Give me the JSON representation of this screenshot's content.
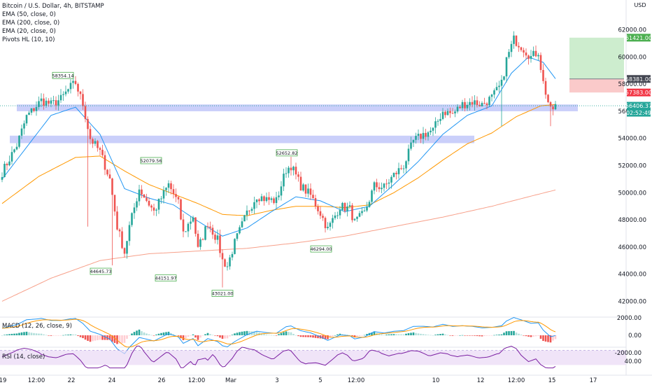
{
  "header": {
    "title": "Bitcoin / U.S. Dollar, 4h, BITSTAMP",
    "indicators": [
      "EMA (50, close, 0)",
      "EMA (200, close, 0)",
      "EMA (20, close, 0)",
      "Pivots HL (10, 10)"
    ]
  },
  "currency": {
    "line1": "USD",
    "line2": ""
  },
  "macd_label": "MACD (12, 26, close, 9)",
  "rsi_label": "RSI (14, close)",
  "badges": {
    "target": "61421.00",
    "entry": "58381.00",
    "stop": "57383.00",
    "last_price": "56406.37",
    "countdown": "02:52:49"
  },
  "colors": {
    "up": "#26a69a",
    "down": "#ef5350",
    "ema20": "#2196f3",
    "ema50": "#ff9800",
    "ema200": "#f7a08a",
    "zone": "#9fa8f5",
    "profit": "#c8ebc9",
    "loss": "#f9c4c4",
    "macd_line": "#2196f3",
    "signal_line": "#ff9800",
    "rsi_line": "#7b1fa2",
    "rsi_band": "#ead9f5"
  },
  "chart_data": [
    {
      "type": "candlestick",
      "title": "Bitcoin / U.S. Dollar, 4h, BITSTAMP",
      "ylim": [
        41000,
        63500
      ],
      "y_ticks": [
        "62000.00",
        "60000.00",
        "58000.00",
        "56000.00",
        "54000.00",
        "52000.00",
        "50000.00",
        "48000.00",
        "46000.00",
        "44000.00",
        "42000.00"
      ],
      "x_ticks": [
        "19",
        "12:00",
        "22",
        "24",
        "26",
        "12:00",
        "Mar",
        "3",
        "5",
        "12:00",
        "10",
        "12",
        "12:00",
        "15",
        "17"
      ],
      "pivot_labels": [
        {
          "label": "58354.14",
          "price": 58354.14,
          "kind": "high"
        },
        {
          "label": "44645.73",
          "price": 44645.73,
          "kind": "low"
        },
        {
          "label": "52079.56",
          "price": 52079.56,
          "kind": "high"
        },
        {
          "label": "44151.97",
          "price": 44151.97,
          "kind": "low"
        },
        {
          "label": "43021.00",
          "price": 43021.0,
          "kind": "low"
        },
        {
          "label": "52652.82",
          "price": 52652.82,
          "kind": "high"
        },
        {
          "label": "46294.00",
          "price": 46294.0,
          "kind": "low"
        }
      ],
      "zones": [
        {
          "from": 56000,
          "to": 56500
        },
        {
          "from": 53650,
          "to": 54200
        }
      ],
      "position": {
        "target": 61421.0,
        "entry": 58381.0,
        "stop": 57383.0
      },
      "last_price": 56406.37,
      "path_anchors": [
        [
          0,
          51500
        ],
        [
          6,
          53500
        ],
        [
          10,
          55600
        ],
        [
          16,
          56800
        ],
        [
          20,
          56500
        ],
        [
          24,
          56900
        ],
        [
          28,
          57800
        ],
        [
          30,
          58100
        ],
        [
          33,
          56500
        ],
        [
          36,
          54000
        ],
        [
          40,
          53000
        ],
        [
          44,
          51000
        ],
        [
          47,
          47500
        ],
        [
          50,
          45600
        ],
        [
          52,
          47500
        ],
        [
          56,
          50300
        ],
        [
          62,
          48600
        ],
        [
          68,
          50600
        ],
        [
          72,
          49200
        ],
        [
          74,
          47000
        ],
        [
          78,
          48300
        ],
        [
          80,
          45800
        ],
        [
          84,
          47800
        ],
        [
          88,
          46500
        ],
        [
          90,
          45000
        ],
        [
          92,
          44600
        ],
        [
          95,
          46300
        ],
        [
          100,
          48500
        ],
        [
          104,
          49800
        ],
        [
          108,
          49500
        ],
        [
          112,
          49400
        ],
        [
          116,
          51700
        ],
        [
          118,
          52000
        ],
        [
          122,
          50500
        ],
        [
          126,
          49800
        ],
        [
          130,
          48500
        ],
        [
          133,
          47300
        ],
        [
          138,
          49000
        ],
        [
          142,
          48800
        ],
        [
          144,
          47800
        ],
        [
          148,
          48500
        ],
        [
          152,
          50500
        ],
        [
          156,
          50400
        ],
        [
          160,
          51300
        ],
        [
          164,
          52000
        ],
        [
          168,
          53800
        ],
        [
          172,
          54300
        ],
        [
          176,
          54600
        ],
        [
          180,
          56000
        ],
        [
          184,
          55800
        ],
        [
          188,
          56500
        ],
        [
          192,
          56700
        ],
        [
          196,
          56500
        ],
        [
          200,
          57000
        ],
        [
          204,
          58000
        ],
        [
          206,
          59800
        ],
        [
          209,
          61300
        ],
        [
          212,
          60800
        ],
        [
          216,
          60000
        ],
        [
          219,
          60400
        ],
        [
          221,
          58100
        ],
        [
          224,
          56000
        ],
        [
          226,
          56400
        ]
      ],
      "ema20_anchors": [
        [
          0,
          51000
        ],
        [
          20,
          55700
        ],
        [
          30,
          56300
        ],
        [
          40,
          54300
        ],
        [
          50,
          50300
        ],
        [
          60,
          49600
        ],
        [
          70,
          49100
        ],
        [
          80,
          47900
        ],
        [
          90,
          46800
        ],
        [
          100,
          47400
        ],
        [
          110,
          48600
        ],
        [
          120,
          49700
        ],
        [
          130,
          49400
        ],
        [
          140,
          48600
        ],
        [
          150,
          49000
        ],
        [
          160,
          50600
        ],
        [
          170,
          52300
        ],
        [
          180,
          54300
        ],
        [
          190,
          55700
        ],
        [
          200,
          56400
        ],
        [
          208,
          58800
        ],
        [
          215,
          60000
        ],
        [
          221,
          59600
        ],
        [
          226,
          58400
        ]
      ],
      "ema50_anchors": [
        [
          0,
          49200
        ],
        [
          15,
          51200
        ],
        [
          30,
          52600
        ],
        [
          40,
          52700
        ],
        [
          50,
          51600
        ],
        [
          60,
          50600
        ],
        [
          70,
          49900
        ],
        [
          80,
          49200
        ],
        [
          90,
          48400
        ],
        [
          100,
          48300
        ],
        [
          110,
          48700
        ],
        [
          120,
          49000
        ],
        [
          130,
          49000
        ],
        [
          140,
          48900
        ],
        [
          150,
          49100
        ],
        [
          160,
          50000
        ],
        [
          170,
          51100
        ],
        [
          180,
          52400
        ],
        [
          190,
          53600
        ],
        [
          200,
          54400
        ],
        [
          210,
          55600
        ],
        [
          220,
          56400
        ],
        [
          226,
          56500
        ]
      ],
      "ema200_anchors": [
        [
          0,
          42000
        ],
        [
          20,
          43700
        ],
        [
          40,
          45000
        ],
        [
          60,
          45500
        ],
        [
          80,
          45700
        ],
        [
          100,
          45900
        ],
        [
          120,
          46300
        ],
        [
          140,
          46800
        ],
        [
          160,
          47500
        ],
        [
          180,
          48200
        ],
        [
          200,
          49000
        ],
        [
          215,
          49700
        ],
        [
          226,
          50200
        ]
      ]
    },
    {
      "type": "macd",
      "title": "MACD (12, 26, close, 9)",
      "y_ticks": [
        "2000.00",
        "0.00",
        "-2000.00"
      ],
      "ylim": [
        -2000,
        2000
      ]
    },
    {
      "type": "line",
      "title": "RSI (14, close)",
      "y_ticks": [
        "40.00"
      ],
      "ylim": [
        0,
        100
      ],
      "band": [
        30,
        70
      ]
    }
  ]
}
